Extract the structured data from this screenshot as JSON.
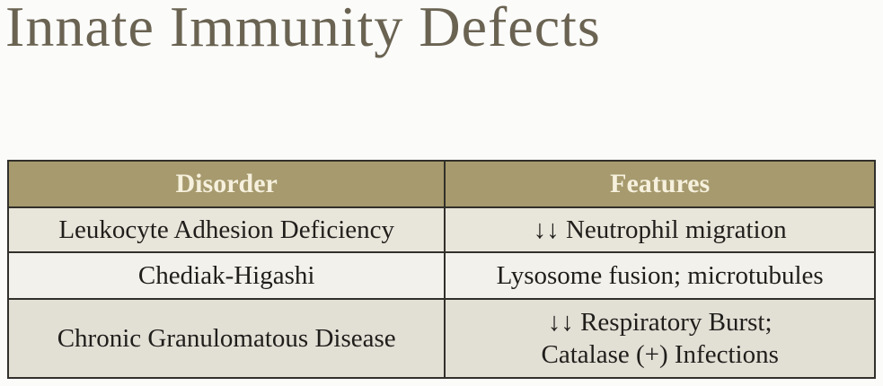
{
  "title": "Innate Immunity Defects",
  "colors": {
    "page_background": "#fbfbfa",
    "title_text": "#6a6352",
    "table_header_bg": "#a69a6e",
    "table_header_text": "#f6f0dd",
    "table_border": "#32302b",
    "row1_bg": "#e8e5da",
    "row2_bg": "#f3f1eb",
    "row3_bg": "#e2dfd5",
    "cell_text": "#201e1b"
  },
  "table": {
    "headers": [
      "Disorder",
      "Features"
    ],
    "rows": [
      {
        "disorder": "Leukocyte Adhesion Deficiency",
        "features": "↓↓ Neutrophil migration"
      },
      {
        "disorder": "Chediak-Higashi",
        "features": "Lysosome fusion; microtubules"
      },
      {
        "disorder": "Chronic Granulomatous Disease",
        "features": "↓↓ Respiratory Burst;\nCatalase (+) Infections"
      }
    ]
  }
}
